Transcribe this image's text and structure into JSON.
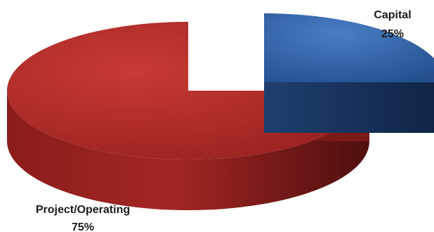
{
  "chart_data": {
    "type": "pie",
    "style": "3d-exploded",
    "title": "",
    "slices": [
      {
        "label": "Capital",
        "value": 25,
        "value_label": "25%",
        "color": "#2f5f9f"
      },
      {
        "label": "Project/Operating",
        "value": 75,
        "value_label": "75%",
        "color": "#a82525"
      }
    ]
  }
}
